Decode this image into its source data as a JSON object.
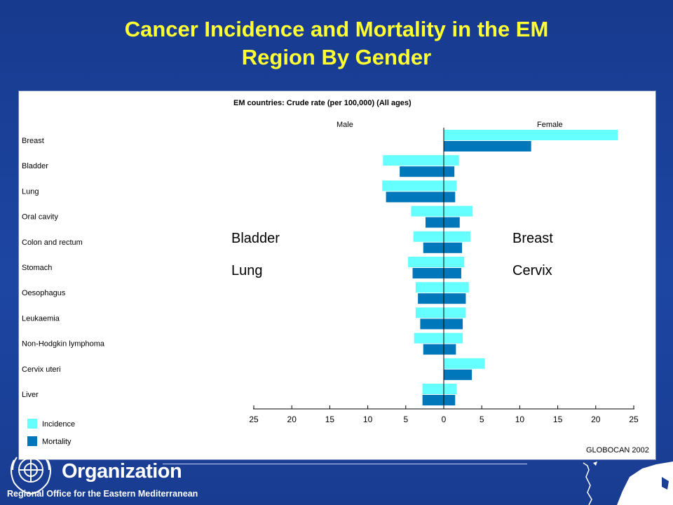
{
  "slide": {
    "title_line1": "Cancer Incidence and Mortality in the EM",
    "title_line2": "Region By Gender",
    "overlay_left_1": "Bladder",
    "overlay_left_2": "Lung",
    "overlay_right_1": "Breast",
    "overlay_right_2": "Cervix",
    "org_name": "Organization",
    "org_subtitle": "Regional Office for the Eastern Mediterranean"
  },
  "colors": {
    "incidence": "#66ffff",
    "mortality": "#0077bb",
    "title": "#ffff33",
    "background": "#1a3f95"
  },
  "chart_data": {
    "type": "bar",
    "orientation": "horizontal",
    "title": "EM countries: Crude rate (per 100,000) (All ages)",
    "left_header": "Male",
    "right_header": "Female",
    "source": "GLOBOCAN 2002",
    "categories": [
      "Breast",
      "Bladder",
      "Lung",
      "Oral cavity",
      "Colon and rectum",
      "Stomach",
      "Oesophagus",
      "Leukaemia",
      "Non-Hodgkin lymphoma",
      "Cervix uteri",
      "Liver"
    ],
    "xlim": [
      -25,
      25
    ],
    "x_ticks": [
      25,
      20,
      15,
      10,
      5,
      0,
      5,
      10,
      15,
      20,
      25
    ],
    "legend": [
      "Incidence",
      "Mortality"
    ],
    "legend_position": "bottom-left",
    "series": [
      {
        "name": "Incidence",
        "male": [
          0,
          8.0,
          8.1,
          4.3,
          4.0,
          4.7,
          3.7,
          3.7,
          3.9,
          0,
          2.8
        ],
        "female": [
          22.9,
          2.0,
          1.7,
          3.8,
          3.5,
          2.7,
          3.3,
          2.9,
          2.5,
          5.4,
          1.7
        ]
      },
      {
        "name": "Mortality",
        "male": [
          0,
          5.8,
          7.6,
          2.4,
          2.7,
          4.1,
          3.4,
          3.1,
          2.7,
          0,
          2.8
        ],
        "female": [
          11.5,
          1.4,
          1.5,
          2.1,
          2.4,
          2.3,
          2.9,
          2.5,
          1.6,
          3.7,
          1.5
        ]
      }
    ]
  }
}
